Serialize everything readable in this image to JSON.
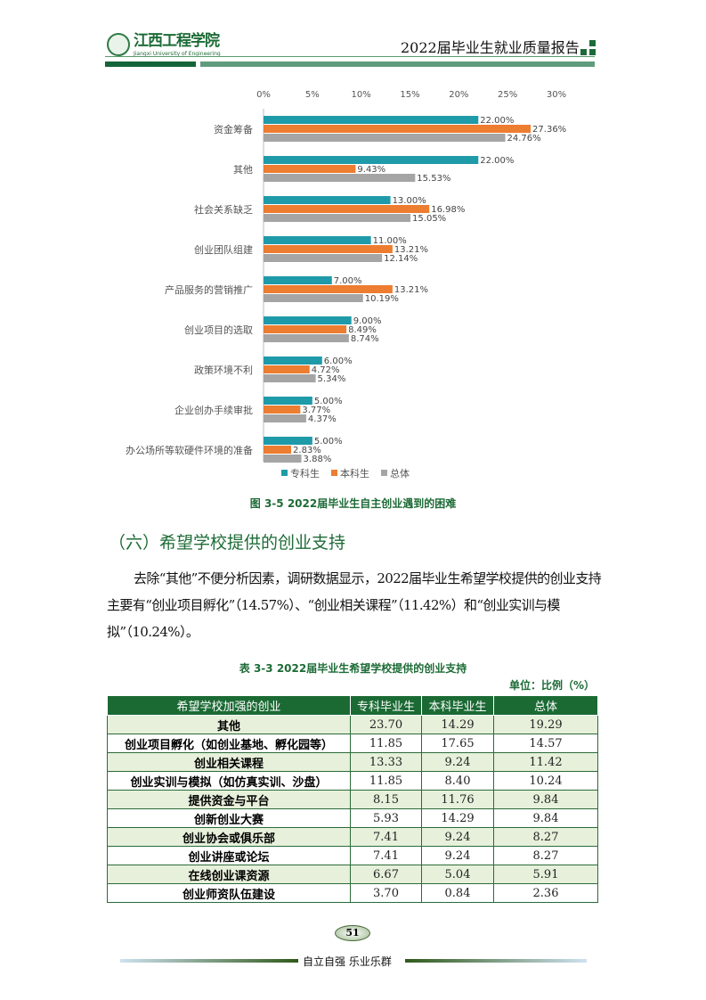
{
  "header": {
    "logo_name": "江西工程学院",
    "logo_en": "Jiangxi University of Engineering",
    "report_title": "2022届毕业生就业质量报告"
  },
  "chart_data": {
    "type": "bar",
    "orientation": "horizontal",
    "title": "图 3-5 2022届毕业生自主创业遇到的困难",
    "categories": [
      "资金筹备",
      "其他",
      "社会关系缺乏",
      "创业团队组建",
      "产品服务的营销推广",
      "创业项目的选取",
      "政策环境不利",
      "企业创办手续审批",
      "办公场所等软硬件环境的准备"
    ],
    "series": [
      {
        "name": "专科生",
        "color": "#1f9aa8",
        "values": [
          22.0,
          22.0,
          13.0,
          11.0,
          7.0,
          9.0,
          6.0,
          5.0,
          5.0
        ]
      },
      {
        "name": "本科生",
        "color": "#ed7d31",
        "values": [
          27.36,
          9.43,
          16.98,
          13.21,
          13.21,
          8.49,
          4.72,
          3.77,
          2.83
        ]
      },
      {
        "name": "总体",
        "color": "#a5a5a5",
        "values": [
          24.76,
          15.53,
          15.05,
          12.14,
          10.19,
          8.74,
          5.34,
          4.37,
          3.88
        ]
      }
    ],
    "xlim": [
      0,
      30
    ],
    "xticks": [
      "0%",
      "5%",
      "10%",
      "15%",
      "20%",
      "25%",
      "30%"
    ],
    "legend": "bottom"
  },
  "section": {
    "heading": "（六）希望学校提供的创业支持",
    "paragraph": "去除“其他”不便分析因素，调研数据显示，2022届毕业生希望学校提供的创业支持主要有“创业项目孵化”（14.57%）、“创业相关课程”（11.42%）和“创业实训与模拟”（10.24%）。"
  },
  "table": {
    "title": "表 3-3 2022届毕业生希望学校提供的创业支持",
    "unit": "单位：比例（%）",
    "headers": [
      "希望学校加强的创业",
      "专科毕业生",
      "本科毕业生",
      "总体"
    ],
    "rows": [
      [
        "其他",
        "23.70",
        "14.29",
        "19.29"
      ],
      [
        "创业项目孵化（如创业基地、孵化园等）",
        "11.85",
        "17.65",
        "14.57"
      ],
      [
        "创业相关课程",
        "13.33",
        "9.24",
        "11.42"
      ],
      [
        "创业实训与模拟（如仿真实训、沙盘）",
        "11.85",
        "8.40",
        "10.24"
      ],
      [
        "提供资金与平台",
        "8.15",
        "11.76",
        "9.84"
      ],
      [
        "创新创业大赛",
        "5.93",
        "14.29",
        "9.84"
      ],
      [
        "创业协会或俱乐部",
        "7.41",
        "9.24",
        "8.27"
      ],
      [
        "创业讲座或论坛",
        "7.41",
        "9.24",
        "8.27"
      ],
      [
        "在线创业课资源",
        "6.67",
        "5.04",
        "5.91"
      ],
      [
        "创业师资队伍建设",
        "3.70",
        "0.84",
        "2.36"
      ]
    ]
  },
  "footer": {
    "page_number": "51",
    "motto": "自立自强  乐业乐群"
  }
}
